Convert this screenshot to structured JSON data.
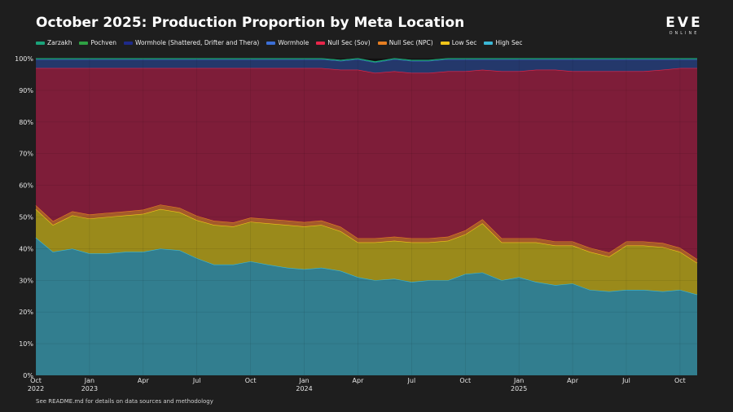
{
  "header": {
    "title": "October 2025: Production Proportion by Meta Location",
    "logo_main": "EVE",
    "logo_sub": "ONLINE"
  },
  "footer": {
    "note": "See README.md for details on data sources and methodology"
  },
  "colors": {
    "background": "#1e1e1e",
    "plot_background": "#111111",
    "grid": "#2c2c2c"
  },
  "chart_data": {
    "type": "area",
    "stacked": true,
    "normalized": true,
    "title": "October 2025: Production Proportion by Meta Location",
    "xlabel": "",
    "ylabel": "",
    "ylim": [
      0,
      100
    ],
    "grid": true,
    "legend_position": "top-left",
    "x": [
      2022.75,
      2022.83,
      2022.92,
      2023.0,
      2023.08,
      2023.17,
      2023.25,
      2023.33,
      2023.42,
      2023.5,
      2023.58,
      2023.67,
      2023.75,
      2023.83,
      2023.92,
      2024.0,
      2024.08,
      2024.17,
      2024.25,
      2024.33,
      2024.42,
      2024.5,
      2024.58,
      2024.67,
      2024.75,
      2024.83,
      2024.92,
      2025.0,
      2025.08,
      2025.17,
      2025.25,
      2025.33,
      2025.42,
      2025.5,
      2025.58,
      2025.67,
      2025.75,
      2025.83
    ],
    "x_ticks": [
      {
        "value": 2022.75,
        "label": "Oct",
        "year": "2022"
      },
      {
        "value": 2023.0,
        "label": "Jan",
        "year": "2023"
      },
      {
        "value": 2023.25,
        "label": "Apr",
        "year": ""
      },
      {
        "value": 2023.5,
        "label": "Jul",
        "year": ""
      },
      {
        "value": 2023.75,
        "label": "Oct",
        "year": ""
      },
      {
        "value": 2024.0,
        "label": "Jan",
        "year": "2024"
      },
      {
        "value": 2024.25,
        "label": "Apr",
        "year": ""
      },
      {
        "value": 2024.5,
        "label": "Jul",
        "year": ""
      },
      {
        "value": 2024.75,
        "label": "Oct",
        "year": ""
      },
      {
        "value": 2025.0,
        "label": "Jan",
        "year": "2025"
      },
      {
        "value": 2025.25,
        "label": "Apr",
        "year": ""
      },
      {
        "value": 2025.5,
        "label": "Jul",
        "year": ""
      },
      {
        "value": 2025.75,
        "label": "Oct",
        "year": ""
      }
    ],
    "y_ticks": [
      {
        "value": 0,
        "label": "0%"
      },
      {
        "value": 10,
        "label": "10%"
      },
      {
        "value": 20,
        "label": "20%"
      },
      {
        "value": 30,
        "label": "30%"
      },
      {
        "value": 40,
        "label": "40%"
      },
      {
        "value": 50,
        "label": "50%"
      },
      {
        "value": 60,
        "label": "60%"
      },
      {
        "value": 70,
        "label": "70%"
      },
      {
        "value": 80,
        "label": "80%"
      },
      {
        "value": 90,
        "label": "90%"
      },
      {
        "value": 100,
        "label": "100%"
      }
    ],
    "series": [
      {
        "name": "High Sec",
        "color": "#3bb8d6",
        "fill": "#327e8f",
        "values": [
          43.5,
          39,
          40,
          38.5,
          38.5,
          39,
          39,
          40,
          39.5,
          37,
          35,
          35,
          36,
          35,
          34,
          33.5,
          34,
          33,
          31,
          30,
          30.5,
          29.5,
          30,
          30,
          32,
          32.5,
          30,
          31,
          29.5,
          28.5,
          29,
          27,
          26.5,
          27,
          27,
          26.5,
          27,
          25.5
        ]
      },
      {
        "name": "Low Sec",
        "color": "#f0c419",
        "fill": "#9a8a1b",
        "values": [
          9,
          8.5,
          10.5,
          11,
          11.5,
          11.5,
          12,
          12.5,
          12,
          12,
          12.5,
          12,
          12.5,
          13,
          13.5,
          13.5,
          13.5,
          12.5,
          11,
          12,
          12,
          12.5,
          12,
          12.5,
          12.5,
          15.5,
          12,
          11,
          12.5,
          12.5,
          12,
          12,
          11,
          14,
          14,
          14,
          12,
          10
        ]
      },
      {
        "name": "Null Sec (NPC)",
        "color": "#e67e22",
        "fill": "#a45a2a",
        "values": [
          1.2,
          1.2,
          1.3,
          1.3,
          1.3,
          1.3,
          1.3,
          1.4,
          1.4,
          1.4,
          1.3,
          1.3,
          1.3,
          1.4,
          1.4,
          1.4,
          1.4,
          1.4,
          1.3,
          1.3,
          1.3,
          1.3,
          1.3,
          1.3,
          1.3,
          1.3,
          1.3,
          1.3,
          1.3,
          1.3,
          1.3,
          1.3,
          1.3,
          1.3,
          1.3,
          1.3,
          1.3,
          1.2
        ]
      },
      {
        "name": "Null Sec (Sov)",
        "color": "#e8264a",
        "fill": "#7e1d39",
        "values": [
          43.3,
          48.3,
          45.2,
          46.2,
          45.7,
          45.2,
          44.7,
          43.1,
          44.1,
          46.6,
          48.2,
          48.7,
          47.2,
          47.6,
          48.1,
          48.6,
          48.1,
          49.6,
          53.2,
          52.2,
          52.2,
          52.2,
          52.2,
          52.2,
          50.2,
          47.2,
          52.7,
          52.7,
          53.2,
          54.2,
          53.7,
          55.7,
          57.2,
          53.7,
          53.7,
          54.7,
          56.7,
          60.3
        ]
      },
      {
        "name": "Wormhole",
        "color": "#3b6fd6",
        "fill": "#24386b",
        "values": [
          2.8,
          2.8,
          2.8,
          2.8,
          2.8,
          2.8,
          2.8,
          2.8,
          2.8,
          2.8,
          2.8,
          2.8,
          2.8,
          2.8,
          2.8,
          2.8,
          2.8,
          2.8,
          3.3,
          3.3,
          3.8,
          3.8,
          3.8,
          3.8,
          3.8,
          3.3,
          3.8,
          3.8,
          3.3,
          3.3,
          3.8,
          3.8,
          3.8,
          3.8,
          3.8,
          3.3,
          2.8,
          2.8
        ]
      },
      {
        "name": "Wormhole (Shattered, Drifter and Thera)",
        "color": "#1e2a8a",
        "fill": "#1a2060",
        "values": [
          0.1,
          0.1,
          0.1,
          0.1,
          0.1,
          0.1,
          0.1,
          0.1,
          0.1,
          0.1,
          0.1,
          0.1,
          0.1,
          0.1,
          0.1,
          0.1,
          0.1,
          0.1,
          0.1,
          0.1,
          0.1,
          0.1,
          0.1,
          0.1,
          0.1,
          0.1,
          0.1,
          0.1,
          0.1,
          0.1,
          0.1,
          0.1,
          0.1,
          0.1,
          0.1,
          0.1,
          0.1,
          0.1
        ]
      },
      {
        "name": "Pochven",
        "color": "#2ea043",
        "fill": "#1f6b2d",
        "values": [
          0.05,
          0.05,
          0.05,
          0.05,
          0.05,
          0.05,
          0.05,
          0.05,
          0.05,
          0.05,
          0.05,
          0.05,
          0.05,
          0.05,
          0.05,
          0.05,
          0.05,
          0.05,
          0.05,
          0.05,
          0.05,
          0.05,
          0.05,
          0.05,
          0.05,
          0.05,
          0.05,
          0.05,
          0.05,
          0.05,
          0.05,
          0.05,
          0.05,
          0.05,
          0.05,
          0.05,
          0.05,
          0.05
        ]
      },
      {
        "name": "Zarzakh",
        "color": "#1aa37a",
        "fill": "#176b55",
        "values": [
          0.05,
          0.05,
          0.05,
          0.05,
          0.05,
          0.05,
          0.05,
          0.05,
          0.05,
          0.05,
          0.05,
          0.05,
          0.05,
          0.05,
          0.05,
          0.05,
          0.05,
          0.05,
          0.05,
          0.05,
          0.05,
          0.05,
          0.05,
          0.05,
          0.05,
          0.05,
          0.05,
          0.05,
          0.05,
          0.05,
          0.05,
          0.05,
          0.05,
          0.05,
          0.05,
          0.05,
          0.05,
          0.05
        ]
      }
    ],
    "legend_order": [
      "Zarzakh",
      "Pochven",
      "Wormhole (Shattered, Drifter and Thera)",
      "Wormhole",
      "Null Sec (Sov)",
      "Null Sec (NPC)",
      "Low Sec",
      "High Sec"
    ]
  }
}
